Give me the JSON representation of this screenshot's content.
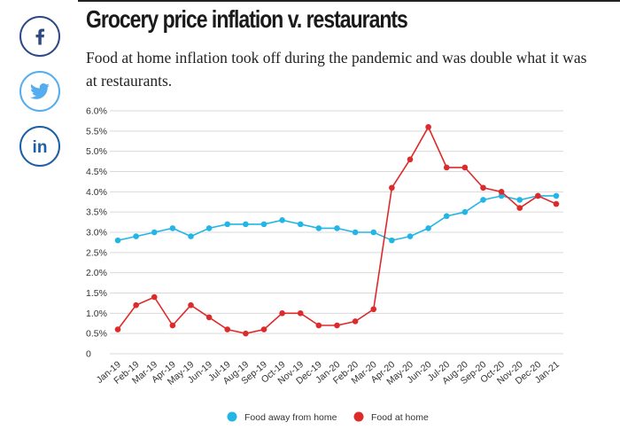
{
  "header": {
    "title": "Grocery price inflation v. restaurants",
    "subtitle": "Food at home inflation took off during the pandemic and was double what it was at restaurants."
  },
  "social": {
    "facebook_icon": "facebook-icon",
    "twitter_icon": "twitter-icon",
    "linkedin_icon": "linkedin-icon",
    "linkedin_label": "in"
  },
  "colors": {
    "away": "#22b5e6",
    "home": "#dd2a2a",
    "grid": "#d9d9d9",
    "facebook": "#2d4a86",
    "twitter": "#55acee",
    "linkedin": "#1c5fa6"
  },
  "chart_data": {
    "type": "line",
    "title": "Grocery price inflation v. restaurants",
    "categories": [
      "Jan-19",
      "Feb-19",
      "Mar-19",
      "Apr-19",
      "May-19",
      "Jun-19",
      "Jul-19",
      "Aug-19",
      "Sep-19",
      "Oct-19",
      "Nov-19",
      "Dec-19",
      "Jan-20",
      "Feb-20",
      "Mar-20",
      "Apr-20",
      "May-20",
      "Jun-20",
      "Jul-20",
      "Aug-20",
      "Sep-20",
      "Oct-20",
      "Nov-20",
      "Dec-20",
      "Jan-21"
    ],
    "yticks": [
      "0",
      "0.5%",
      "1.0%",
      "1.5%",
      "2.0%",
      "2.5%",
      "3.0%",
      "3.5%",
      "4.0%",
      "4.5%",
      "5.0%",
      "5.5%",
      "6.0%"
    ],
    "ylim": [
      0,
      6.0
    ],
    "grid": true,
    "legend": "bottom-center",
    "series": [
      {
        "name": "Food away from home",
        "color": "#22b5e6",
        "values": [
          2.8,
          2.9,
          3.0,
          3.1,
          2.9,
          3.1,
          3.2,
          3.2,
          3.2,
          3.3,
          3.2,
          3.1,
          3.1,
          3.0,
          3.0,
          2.8,
          2.9,
          3.1,
          3.4,
          3.5,
          3.8,
          3.9,
          3.8,
          3.9,
          3.9
        ]
      },
      {
        "name": "Food at home",
        "color": "#dd2a2a",
        "values": [
          0.6,
          1.2,
          1.4,
          0.7,
          1.2,
          0.9,
          0.6,
          0.5,
          0.6,
          1.0,
          1.0,
          0.7,
          0.7,
          0.8,
          1.1,
          4.1,
          4.8,
          5.6,
          4.6,
          4.6,
          4.1,
          4.0,
          3.6,
          3.9,
          3.7
        ]
      }
    ]
  }
}
